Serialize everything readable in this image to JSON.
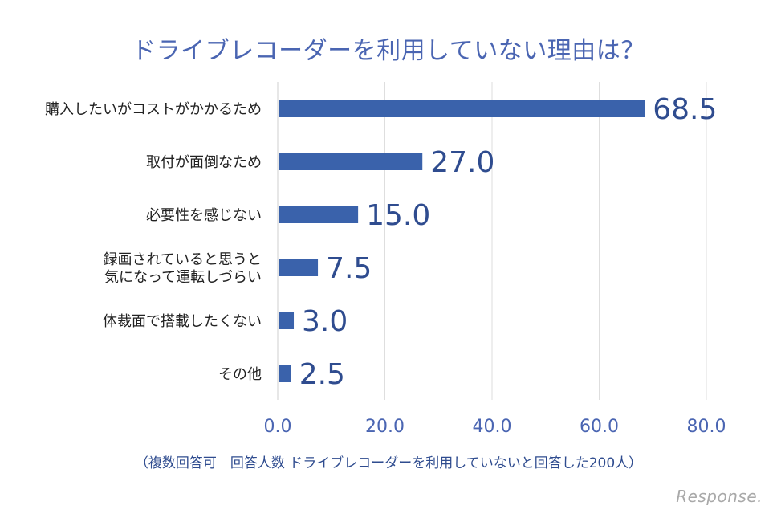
{
  "chart_data": {
    "type": "bar",
    "orientation": "horizontal",
    "title": "ドライブレコーダーを利用していない理由は？",
    "categories": [
      [
        "購入したいがコストがかかるため"
      ],
      [
        "取付が面倒なため"
      ],
      [
        "必要性を感じない"
      ],
      [
        "録画されていると思うと",
        "気になって運転しづらい"
      ],
      [
        "体裁面で搭載したくない"
      ],
      [
        "その他"
      ]
    ],
    "values": [
      68.5,
      27.0,
      15.0,
      7.5,
      3.0,
      2.5
    ],
    "value_labels": [
      "68.5",
      "27.0",
      "15.0",
      "7.5",
      "3.0",
      "2.5"
    ],
    "xlim": [
      0,
      80
    ],
    "x_ticks": [
      "0.0",
      "20.0",
      "40.0",
      "60.0",
      "80.0"
    ],
    "x_tick_values": [
      0,
      20,
      40,
      60,
      80
    ],
    "grid": true,
    "note": "（複数回答可　回答人数 ドライブレコーダーを利用していないと回答した200人）",
    "bar_color": "#3a62ab",
    "label_color": "#2f4c8f"
  },
  "watermark": "Response."
}
